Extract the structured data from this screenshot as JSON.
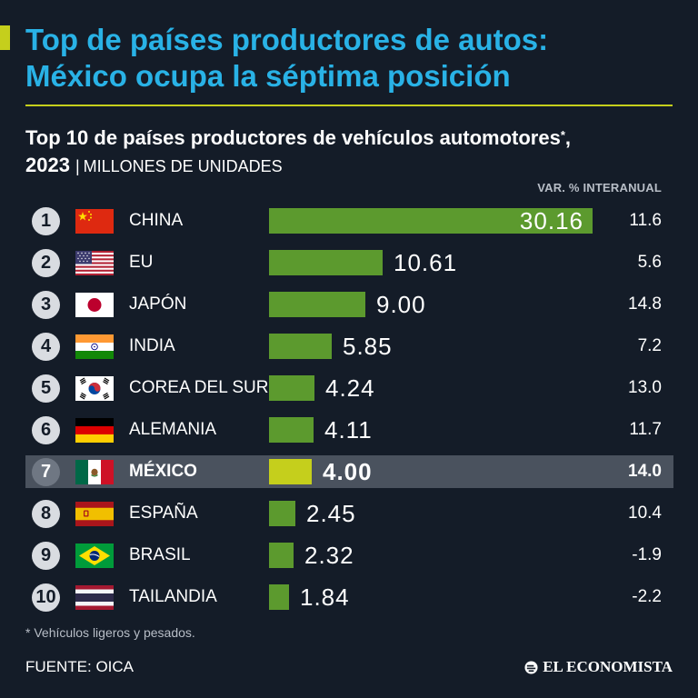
{
  "headline": {
    "line1": "Top de países productores de autos:",
    "line2": "México ocupa la séptima posición"
  },
  "subtitle": {
    "title": "Top 10 de países productores de vehículos automotores",
    "asterisk": "*",
    "comma": ",",
    "year": "2023",
    "separator": "|",
    "unit": "MILLONES DE UNIDADES"
  },
  "var_header": "VAR. % INTERANUAL",
  "chart_data": {
    "type": "bar",
    "orientation": "horizontal",
    "title": "Top 10 de países productores de vehículos automotores*, 2023",
    "unit": "MILLONES DE UNIDADES",
    "xlim": [
      0,
      30.16
    ],
    "highlight": "MÉXICO",
    "categories": [
      "CHINA",
      "EU",
      "JAPÓN",
      "INDIA",
      "COREA DEL SUR",
      "ALEMANIA",
      "MÉXICO",
      "ESPAÑA",
      "BRASIL",
      "TAILANDIA"
    ],
    "ranks": [
      "1",
      "2",
      "3",
      "4",
      "5",
      "6",
      "7",
      "8",
      "9",
      "10"
    ],
    "flags": [
      "china-flag",
      "usa-flag",
      "japan-flag",
      "india-flag",
      "south-korea-flag",
      "germany-flag",
      "mexico-flag",
      "spain-flag",
      "brazil-flag",
      "thailand-flag"
    ],
    "values": [
      30.16,
      10.61,
      9.0,
      5.85,
      4.24,
      4.11,
      4.0,
      2.45,
      2.32,
      1.84
    ],
    "value_labels": [
      "30.16",
      "10.61",
      "9.00",
      "5.85",
      "4.24",
      "4.11",
      "4.00",
      "2.45",
      "2.32",
      "1.84"
    ],
    "var_pct": [
      "11.6",
      "5.6",
      "14.8",
      "7.2",
      "13.0",
      "11.7",
      "14.0",
      "10.4",
      "-1.9",
      "-2.2"
    ]
  },
  "colors": {
    "background": "#141c28",
    "accent": "#c5cf1c",
    "headline": "#29b2e6",
    "bar": "#5c9a2e",
    "highlight_bar": "#c5cf1c",
    "highlight_row": "#4a525e"
  },
  "footnote": "* Vehículos ligeros y pesados.",
  "source": "FUENTE: OICA",
  "logo": {
    "text": "EL ECONOMISTA",
    "icon": "el-economista-logo-icon"
  }
}
